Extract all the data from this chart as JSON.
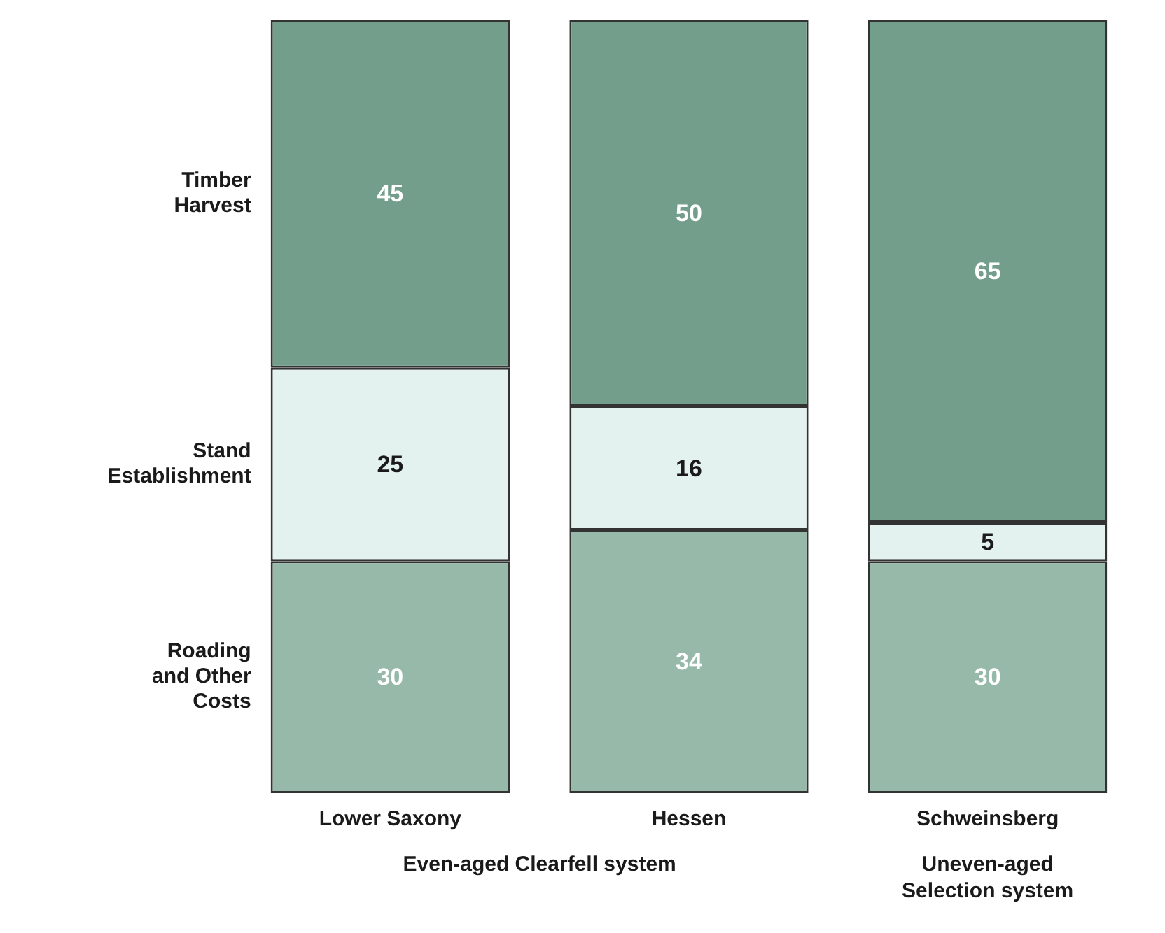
{
  "chart_data": {
    "type": "bar",
    "stacked": true,
    "categories": [
      "Lower Saxony",
      "Hessen",
      "Schweinsberg"
    ],
    "series": [
      {
        "name": "Roading and Other Costs",
        "color": "#97b9aa",
        "values": [
          30,
          34,
          30
        ]
      },
      {
        "name": "Stand Establishment",
        "color": "#e4f2ef",
        "values": [
          25,
          16,
          5
        ]
      },
      {
        "name": "Timber Harvest",
        "color": "#739e8b",
        "values": [
          45,
          50,
          65
        ]
      }
    ],
    "data_labels": true,
    "legend": "left",
    "tick_labels": "x",
    "grid": false,
    "annotations": [
      "Even-aged Clearfell system",
      "Uneven-aged Selection system"
    ]
  }
}
